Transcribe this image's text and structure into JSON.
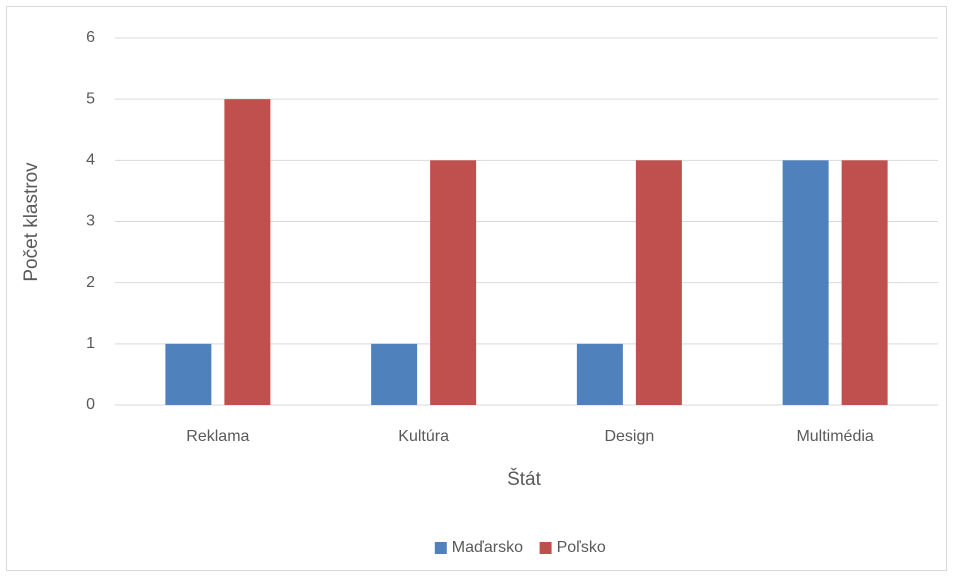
{
  "chart_data": {
    "type": "bar",
    "categories": [
      "Reklama",
      "Kultúra",
      "Design",
      "Multimédia"
    ],
    "series": [
      {
        "name": "Maďarsko",
        "color": "#4f81bd",
        "values": [
          1,
          1,
          1,
          4
        ]
      },
      {
        "name": "Poľsko",
        "color": "#c0504d",
        "values": [
          5,
          4,
          4,
          4
        ]
      }
    ],
    "x_label": "Štát",
    "y_label": "Počet klastrov",
    "ylim": [
      0,
      6
    ],
    "yticks": [
      0,
      1,
      2,
      3,
      4,
      5,
      6
    ],
    "grid": true,
    "legend": "bottom"
  }
}
